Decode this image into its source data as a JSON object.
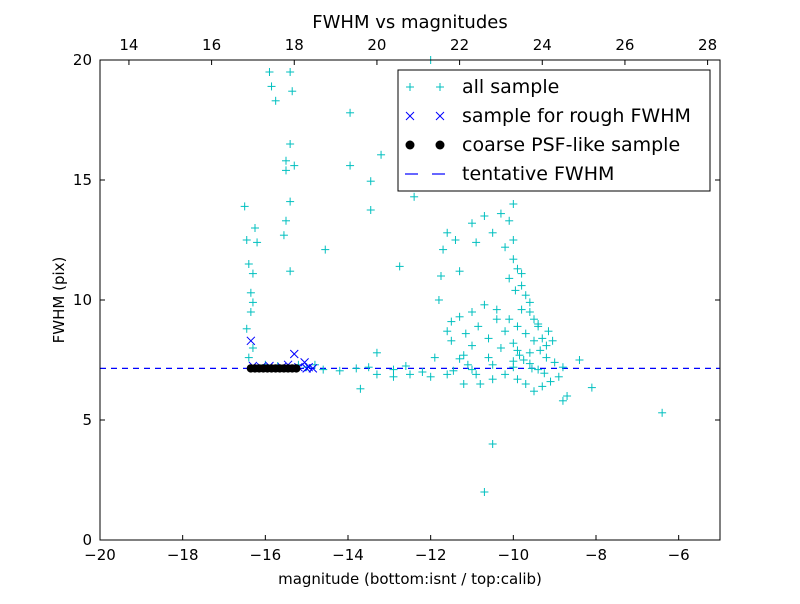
{
  "chart_data": {
    "type": "scatter",
    "title": "FWHM vs magnitudes",
    "xlabel": "magnitude (bottom:isnt / top:calib)",
    "ylabel": "FWHM (pix)",
    "xlim": [
      -20,
      -5
    ],
    "ylim": [
      0,
      20
    ],
    "x_top_lim": [
      13.3,
      28.3
    ],
    "xticks": [
      "−20",
      "−18",
      "−16",
      "−14",
      "−12",
      "−10",
      "−8",
      "−6"
    ],
    "x_tick_values": [
      -20,
      -18,
      -16,
      -14,
      -12,
      -10,
      -8,
      -6
    ],
    "yticks": [
      "0",
      "5",
      "10",
      "15",
      "20"
    ],
    "y_tick_values": [
      0,
      5,
      10,
      15,
      20
    ],
    "xticks_top": [
      "14",
      "16",
      "18",
      "20",
      "22",
      "24",
      "26",
      "28"
    ],
    "x_top_tick_values": [
      14,
      16,
      18,
      20,
      22,
      24,
      26,
      28
    ],
    "tentative_fwhm": 7.15,
    "legend": {
      "position": "top-right",
      "entries": [
        {
          "label": "all sample",
          "marker": "plus",
          "color": "#00bfbf"
        },
        {
          "label": "sample for rough FWHM",
          "marker": "x",
          "color": "#0000ff"
        },
        {
          "label": "coarse PSF-like sample",
          "marker": "dot",
          "color": "#000000"
        },
        {
          "label": "tentative FWHM",
          "marker": "dash",
          "color": "#0000ff"
        }
      ]
    },
    "series": [
      {
        "name": "all sample",
        "marker": "plus",
        "color": "#00bfbf",
        "points": [
          [
            -16.5,
            13.9
          ],
          [
            -16.45,
            12.5
          ],
          [
            -16.4,
            11.5
          ],
          [
            -16.35,
            10.3
          ],
          [
            -16.3,
            9.9
          ],
          [
            -16.45,
            8.8
          ],
          [
            -16.3,
            8.0
          ],
          [
            -16.4,
            7.6
          ],
          [
            -16.25,
            13.0
          ],
          [
            -16.2,
            12.4
          ],
          [
            -16.3,
            11.1
          ],
          [
            -16.35,
            9.5
          ],
          [
            -15.9,
            19.5
          ],
          [
            -15.85,
            18.9
          ],
          [
            -15.75,
            18.3
          ],
          [
            -15.4,
            19.5
          ],
          [
            -15.35,
            18.7
          ],
          [
            -15.4,
            16.5
          ],
          [
            -15.5,
            15.8
          ],
          [
            -15.3,
            15.6
          ],
          [
            -15.5,
            15.4
          ],
          [
            -15.4,
            14.1
          ],
          [
            -15.5,
            13.3
          ],
          [
            -15.55,
            12.7
          ],
          [
            -15.4,
            11.2
          ],
          [
            -14.55,
            12.1
          ],
          [
            -13.95,
            17.8
          ],
          [
            -13.95,
            15.6
          ],
          [
            -13.45,
            14.95
          ],
          [
            -13.45,
            13.75
          ],
          [
            -13.2,
            16.05
          ],
          [
            -12.75,
            11.4
          ],
          [
            -12.4,
            14.3
          ],
          [
            -12.0,
            20.0
          ],
          [
            -11.6,
            12.8
          ],
          [
            -11.7,
            12.1
          ],
          [
            -11.75,
            11.0
          ],
          [
            -11.8,
            10.0
          ],
          [
            -11.4,
            12.5
          ],
          [
            -11.3,
            11.2
          ],
          [
            -11.0,
            13.2
          ],
          [
            -10.9,
            12.4
          ],
          [
            -10.7,
            13.5
          ],
          [
            -10.5,
            12.8
          ],
          [
            -10.3,
            13.6
          ],
          [
            -10.1,
            13.3
          ],
          [
            -10.0,
            14.0
          ],
          [
            -10.0,
            12.5
          ],
          [
            -10.2,
            12.2
          ],
          [
            -10.0,
            11.7
          ],
          [
            -9.9,
            11.3
          ],
          [
            -9.8,
            11.1
          ],
          [
            -10.1,
            10.9
          ],
          [
            -9.95,
            10.4
          ],
          [
            -9.7,
            10.2
          ],
          [
            -9.8,
            9.6
          ],
          [
            -9.6,
            9.5
          ],
          [
            -9.5,
            9.2
          ],
          [
            -9.4,
            8.9
          ],
          [
            -9.3,
            8.4
          ],
          [
            -9.2,
            8.1
          ],
          [
            -9.5,
            8.3
          ],
          [
            -9.7,
            8.6
          ],
          [
            -9.9,
            8.9
          ],
          [
            -10.1,
            9.2
          ],
          [
            -10.4,
            9.6
          ],
          [
            -10.7,
            9.8
          ],
          [
            -11.0,
            9.5
          ],
          [
            -11.3,
            9.3
          ],
          [
            -11.5,
            9.1
          ],
          [
            -11.6,
            8.7
          ],
          [
            -11.5,
            8.3
          ],
          [
            -11.0,
            8.1
          ],
          [
            -10.6,
            8.4
          ],
          [
            -10.3,
            8.0
          ],
          [
            -9.9,
            7.9
          ],
          [
            -9.6,
            7.8
          ],
          [
            -9.2,
            7.6
          ],
          [
            -9.0,
            7.4
          ],
          [
            -8.8,
            7.2
          ],
          [
            -8.9,
            6.8
          ],
          [
            -9.1,
            6.6
          ],
          [
            -9.3,
            6.4
          ],
          [
            -9.5,
            6.2
          ],
          [
            -9.7,
            6.5
          ],
          [
            -9.9,
            6.7
          ],
          [
            -10.2,
            6.9
          ],
          [
            -10.5,
            6.7
          ],
          [
            -10.8,
            6.5
          ],
          [
            -11.2,
            6.5
          ],
          [
            -11.6,
            6.9
          ],
          [
            -12.0,
            6.8
          ],
          [
            -12.5,
            6.9
          ],
          [
            -12.9,
            6.8
          ],
          [
            -13.3,
            6.9
          ],
          [
            -13.7,
            6.3
          ],
          [
            -13.3,
            7.8
          ],
          [
            -10.5,
            4.0
          ],
          [
            -10.7,
            2.0
          ],
          [
            -8.1,
            6.35
          ],
          [
            -8.7,
            6.0
          ],
          [
            -8.8,
            5.8
          ],
          [
            -8.4,
            7.5
          ],
          [
            -6.4,
            5.3
          ],
          [
            -11.9,
            7.6
          ],
          [
            -11.2,
            7.7
          ],
          [
            -10.0,
            7.45
          ],
          [
            -9.6,
            7.35
          ],
          [
            -12.6,
            7.25
          ],
          [
            -11.0,
            7.1
          ],
          [
            -10.5,
            7.3
          ],
          [
            -10.0,
            7.2
          ],
          [
            -9.4,
            7.1
          ],
          [
            -13.5,
            7.2
          ],
          [
            -14.6,
            7.1
          ],
          [
            -15.2,
            7.3
          ],
          [
            -9.8,
            10.6
          ],
          [
            -9.6,
            9.9
          ],
          [
            -9.4,
            9.0
          ],
          [
            -9.15,
            8.7
          ],
          [
            -9.05,
            8.3
          ],
          [
            -9.35,
            7.9
          ],
          [
            -9.75,
            7.5
          ],
          [
            -10.6,
            7.6
          ],
          [
            -11.3,
            7.55
          ],
          [
            -10.85,
            8.9
          ],
          [
            -11.15,
            8.6
          ],
          [
            -10.4,
            9.2
          ],
          [
            -10.2,
            8.7
          ],
          [
            -10.0,
            8.2
          ],
          [
            -9.85,
            7.7
          ],
          [
            -9.55,
            7.15
          ],
          [
            -9.25,
            6.95
          ],
          [
            -10.9,
            6.9
          ],
          [
            -11.1,
            7.3
          ],
          [
            -11.45,
            7.05
          ],
          [
            -12.2,
            7.0
          ],
          [
            -12.9,
            7.1
          ],
          [
            -13.8,
            7.15
          ],
          [
            -14.2,
            7.05
          ],
          [
            -16.0,
            7.3
          ],
          [
            -15.7,
            7.25
          ],
          [
            -15.0,
            7.2
          ],
          [
            -14.8,
            7.3
          ]
        ]
      },
      {
        "name": "sample for rough FWHM",
        "marker": "x",
        "color": "#0000ff",
        "points": [
          [
            -16.35,
            8.3
          ],
          [
            -15.3,
            7.75
          ],
          [
            -15.05,
            7.4
          ],
          [
            -16.1,
            7.2
          ],
          [
            -15.9,
            7.25
          ],
          [
            -15.6,
            7.2
          ],
          [
            -15.45,
            7.3
          ],
          [
            -15.2,
            7.2
          ],
          [
            -15.0,
            7.15
          ],
          [
            -14.95,
            7.2
          ],
          [
            -14.85,
            7.15
          ],
          [
            -16.3,
            7.25
          ]
        ]
      },
      {
        "name": "coarse PSF-like sample",
        "marker": "dot",
        "color": "#000000",
        "points": [
          [
            -16.35,
            7.15
          ],
          [
            -16.25,
            7.15
          ],
          [
            -16.15,
            7.15
          ],
          [
            -16.05,
            7.15
          ],
          [
            -15.95,
            7.15
          ],
          [
            -15.85,
            7.15
          ],
          [
            -15.75,
            7.15
          ],
          [
            -15.65,
            7.15
          ],
          [
            -15.55,
            7.15
          ],
          [
            -15.45,
            7.15
          ],
          [
            -15.35,
            7.15
          ],
          [
            -15.25,
            7.15
          ]
        ]
      }
    ]
  }
}
